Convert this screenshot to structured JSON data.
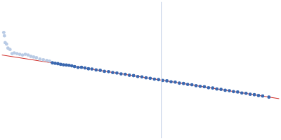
{
  "chart_data": {
    "type": "scatter",
    "xlim": [
      0,
      400
    ],
    "ylim": [
      0,
      200
    ],
    "tick_labels": false,
    "grid": false,
    "series": [
      {
        "type": "line",
        "color": "#c9d5ea",
        "marker": "none",
        "line_style": "solid",
        "x": [
          230,
          230
        ],
        "values": [
          0,
          200
        ]
      },
      {
        "type": "scatter",
        "color": "#b9cbe5",
        "marker": "circle",
        "x": [
          3,
          4,
          5,
          7,
          9,
          12,
          15,
          18,
          22,
          26,
          30,
          34,
          38,
          42,
          46,
          50,
          55,
          60,
          65,
          69
        ],
        "values": [
          155,
          150,
          140,
          138,
          132,
          130,
          124,
          125,
          124,
          123,
          122,
          123,
          122,
          120,
          119,
          118,
          116,
          115,
          114,
          113
        ]
      },
      {
        "type": "scatter",
        "color": "#3a68b0",
        "marker": "circle",
        "x": [
          73,
          77,
          81,
          85,
          89,
          93,
          97,
          101,
          105,
          110,
          115,
          120,
          125,
          130,
          136,
          142,
          148,
          154,
          160,
          166,
          172,
          178,
          184,
          190,
          196,
          202,
          208,
          214,
          220,
          226,
          232,
          238,
          244,
          250,
          256,
          262,
          268,
          274,
          280,
          286,
          292,
          298,
          304,
          310,
          316,
          322,
          328,
          334,
          340,
          346,
          352,
          358,
          364,
          370,
          376,
          385
        ],
        "values": [
          110.5,
          109.8,
          109.2,
          108.3,
          107.6,
          107.3,
          106.8,
          106.1,
          105.0,
          103.8,
          103.9,
          103.0,
          101.8,
          101.5,
          100.1,
          99.5,
          98.0,
          97.6,
          96.2,
          95.6,
          94.3,
          93.8,
          92.3,
          91.8,
          90.4,
          89.9,
          88.5,
          87.9,
          86.6,
          85.9,
          84.7,
          84.1,
          82.8,
          82.2,
          80.8,
          80.3,
          78.9,
          78.4,
          77.0,
          76.1,
          75.5,
          74.1,
          73.6,
          72.2,
          71.6,
          70.3,
          69.7,
          68.4,
          67.8,
          66.4,
          65.9,
          64.5,
          63.9,
          62.6,
          61.9,
          60.3
        ]
      },
      {
        "type": "line",
        "color": "#d0312d",
        "marker": "none",
        "line_style": "solid",
        "x": [
          0,
          400
        ],
        "values": [
          122,
          58
        ]
      }
    ]
  }
}
